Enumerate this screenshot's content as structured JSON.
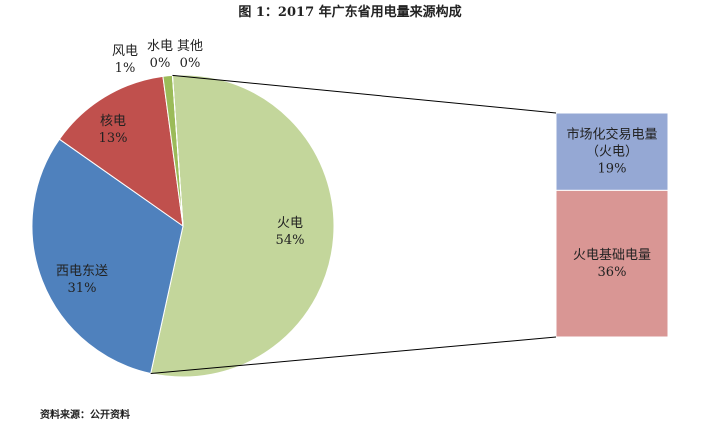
{
  "chart_data": {
    "type": "pie-of-bar",
    "title": "图 1：2017 年广东省用电量来源构成",
    "source": "资料来源：公开资料",
    "categories": [
      "火电",
      "西电东送",
      "核电",
      "风电",
      "水电",
      "其他"
    ],
    "values": [
      54,
      31,
      13,
      1,
      0,
      0
    ],
    "value_labels": [
      "54%",
      "31%",
      "13%",
      "1%",
      "0%",
      "0%"
    ],
    "colors": [
      "#c3d69b",
      "#4f81bd",
      "#c0504d",
      "#9bbb59",
      "#8064a2",
      "#4bacc6"
    ],
    "breakdown": {
      "categories": [
        "市场化交易电量\n（火电）",
        "火电基础电量"
      ],
      "values": [
        19,
        36
      ],
      "value_labels": [
        "19%",
        "36%"
      ],
      "colors": [
        "#95a8d4",
        "#d99694"
      ]
    }
  }
}
